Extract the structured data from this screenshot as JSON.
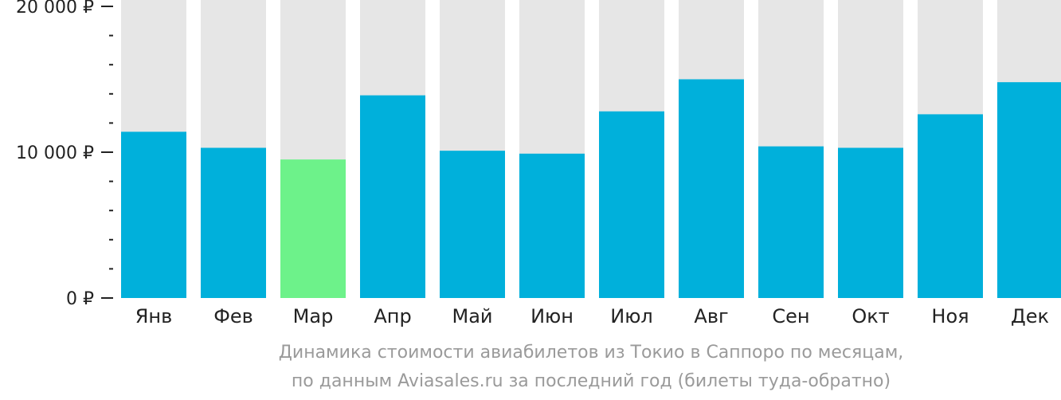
{
  "chart_data": {
    "type": "bar",
    "categories": [
      "Янв",
      "Фев",
      "Мар",
      "Апр",
      "Май",
      "Июн",
      "Июл",
      "Авг",
      "Сен",
      "Окт",
      "Ноя",
      "Дек"
    ],
    "values": [
      11400,
      10300,
      9500,
      13900,
      10100,
      9900,
      12800,
      15000,
      10400,
      10300,
      12600,
      14800
    ],
    "highlight_index": 2,
    "ylim": [
      0,
      20000
    ],
    "yticks": [
      {
        "value": 0,
        "label": "0 ₽"
      },
      {
        "value": 10000,
        "label": "10 000 ₽"
      },
      {
        "value": 20000,
        "label": "20 000 ₽"
      }
    ],
    "minor_tick_step": 2000,
    "background_bar_max": 21000,
    "colors": {
      "bar": "#00b0db",
      "highlight": "#6df28a",
      "background_bar": "#e6e6e6",
      "axis": "#222222"
    }
  },
  "caption": {
    "line1": "Динамика стоимости авиабилетов из Токио в Саппоро по месяцам,",
    "line2": "по данным Aviasales.ru за последний год (билеты туда-обратно)"
  }
}
